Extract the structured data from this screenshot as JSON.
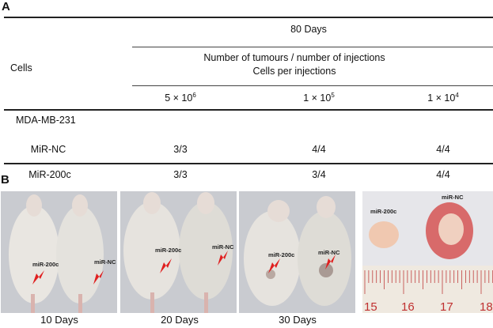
{
  "panel_a": {
    "label": "A",
    "header_days": "80 Days",
    "header_cells": "Cells",
    "header_metric_line1": "Number of tumours / number of injections",
    "header_metric_line2": "Cells per injections",
    "columns": [
      {
        "mantissa": "5 × 10",
        "exponent": "6"
      },
      {
        "mantissa": "1 × 10",
        "exponent": "5"
      },
      {
        "mantissa": "1 × 10",
        "exponent": "4"
      }
    ],
    "group_label": "MDA-MB-231",
    "rows": [
      {
        "name": "MiR-NC",
        "values": [
          "3/3",
          "4/4",
          "4/4"
        ]
      },
      {
        "name": "MiR-200c",
        "values": [
          "3/3",
          "3/4",
          "4/4"
        ]
      }
    ]
  },
  "panel_b": {
    "label": "B",
    "photos": [
      {
        "caption": "10 Days",
        "label_left": "miR-200c",
        "label_right": "miR-NC"
      },
      {
        "caption": "20 Days",
        "label_left": "miR-200c",
        "label_right": "miR-NC"
      },
      {
        "caption": "30 Days",
        "label_left": "miR-200c",
        "label_right": "miR-NC"
      }
    ],
    "tumour_photo": {
      "label_left": "miR-200c",
      "label_right": "miR-NC",
      "ruler_numbers": [
        "15",
        "16",
        "17",
        "18"
      ]
    },
    "arrow_color": "#e02020"
  }
}
